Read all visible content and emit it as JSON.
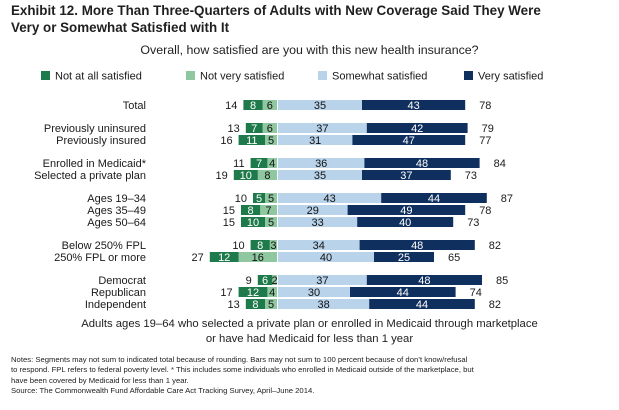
{
  "title_line1": "Exhibit 12. More Than Three-Quarters of Adults with New Coverage Said They Were",
  "title_line2": "Very or Somewhat Satisfied with It",
  "chart_data": {
    "type": "bar",
    "subtitle": "Overall, how satisfied are you with this new health insurance?",
    "legend": [
      "Not at all satisfied",
      "Not very satisfied",
      "Somewhat satisfied",
      "Very satisfied"
    ],
    "colors": {
      "not_at_all": "#1e7a4a",
      "not_very": "#8fc7a0",
      "somewhat": "#b9d3ea",
      "very": "#0f2f5e",
      "dark_label": "#111111",
      "light_label": "#ffffff"
    },
    "rows": [
      {
        "label": "Total",
        "not_at_all": 8,
        "not_very": 6,
        "neg_total": 14,
        "somewhat": 35,
        "very": 43,
        "pos_total": 78,
        "group": 0
      },
      {
        "label": "Previously uninsured",
        "not_at_all": 7,
        "not_very": 6,
        "neg_total": 13,
        "somewhat": 37,
        "very": 42,
        "pos_total": 79,
        "group": 1
      },
      {
        "label": "Previously insured",
        "not_at_all": 11,
        "not_very": 5,
        "neg_total": 16,
        "somewhat": 31,
        "very": 47,
        "pos_total": 77,
        "group": 1
      },
      {
        "label": "Enrolled in Medicaid*",
        "not_at_all": 7,
        "not_very": 4,
        "neg_total": 11,
        "somewhat": 36,
        "very": 48,
        "pos_total": 84,
        "group": 2
      },
      {
        "label": "Selected a private plan",
        "not_at_all": 10,
        "not_very": 8,
        "neg_total": 19,
        "somewhat": 35,
        "very": 37,
        "pos_total": 73,
        "group": 2
      },
      {
        "label": "Ages 19–34",
        "not_at_all": 5,
        "not_very": 5,
        "neg_total": 10,
        "somewhat": 43,
        "very": 44,
        "pos_total": 87,
        "group": 3
      },
      {
        "label": "Ages 35–49",
        "not_at_all": 8,
        "not_very": 7,
        "neg_total": 15,
        "somewhat": 29,
        "very": 49,
        "pos_total": 78,
        "group": 3
      },
      {
        "label": "Ages 50–64",
        "not_at_all": 10,
        "not_very": 5,
        "neg_total": 15,
        "somewhat": 33,
        "very": 40,
        "pos_total": 73,
        "group": 3
      },
      {
        "label": "Below 250% FPL",
        "not_at_all": 8,
        "not_very": 3,
        "neg_total": 10,
        "somewhat": 34,
        "very": 48,
        "pos_total": 82,
        "group": 4
      },
      {
        "label": "250% FPL or more",
        "not_at_all": 12,
        "not_very": 16,
        "neg_total": 27,
        "somewhat": 40,
        "very": 25,
        "pos_total": 65,
        "group": 4
      },
      {
        "label": "Democrat",
        "not_at_all": 6,
        "not_very": 2,
        "neg_total": 9,
        "somewhat": 37,
        "very": 48,
        "pos_total": 85,
        "group": 5
      },
      {
        "label": "Republican",
        "not_at_all": 12,
        "not_very": 4,
        "neg_total": 17,
        "somewhat": 30,
        "very": 44,
        "pos_total": 74,
        "group": 5
      },
      {
        "label": "Independent",
        "not_at_all": 8,
        "not_very": 5,
        "neg_total": 13,
        "somewhat": 38,
        "very": 44,
        "pos_total": 82,
        "group": 5
      }
    ]
  },
  "caption_line1": "Adults ages 19–64 who selected a private plan or enrolled in Medicaid through marketplace",
  "caption_line2": "or have had Medicaid for less than 1 year",
  "notes": [
    "Notes: Segments may not sum to indicated total because of rounding. Bars may not sum to 100 percent because of don’t know/refusal",
    "to respond. FPL refers to federal poverty level. * This includes some individuals who enrolled in Medicaid outside of the marketplace, but",
    "have been covered by Medicaid for less than 1 year.",
    "Source: The Commonwealth Fund Affordable Care Act Tracking Survey, April–June 2014."
  ]
}
